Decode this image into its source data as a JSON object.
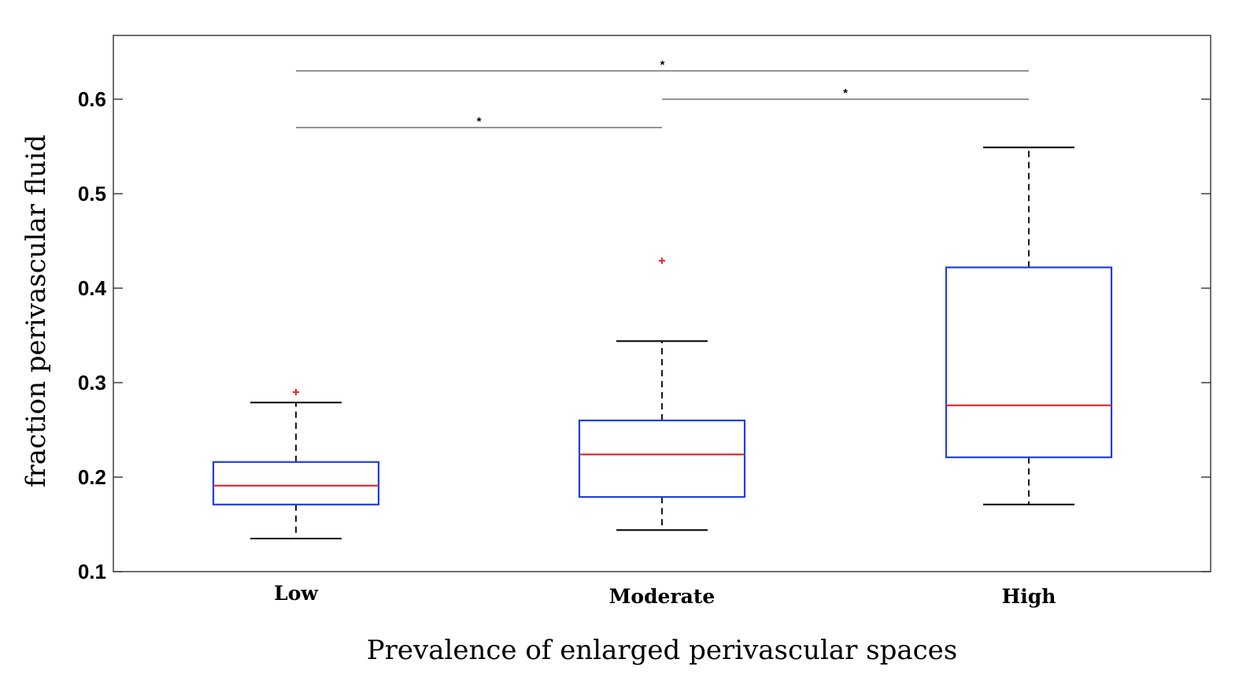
{
  "chart_data": {
    "type": "box",
    "xlabel": "Prevalence of enlarged perivascular spaces",
    "ylabel": "fraction perivascular fluid",
    "ylim": [
      0.1,
      0.67
    ],
    "yticks": [
      "0.1",
      "0.2",
      "0.3",
      "0.4",
      "0.5",
      "0.6"
    ],
    "categories": [
      "Low",
      "Moderate",
      "High"
    ],
    "boxes": [
      {
        "category": "Low",
        "whisker_low": 0.135,
        "q1": 0.171,
        "median": 0.191,
        "q3": 0.216,
        "whisker_high": 0.279,
        "outliers": [
          0.29
        ]
      },
      {
        "category": "Moderate",
        "whisker_low": 0.144,
        "q1": 0.179,
        "median": 0.224,
        "q3": 0.26,
        "whisker_high": 0.344,
        "outliers": [
          0.429
        ]
      },
      {
        "category": "High",
        "whisker_low": 0.171,
        "q1": 0.221,
        "median": 0.276,
        "q3": 0.422,
        "whisker_high": 0.549,
        "outliers": []
      }
    ],
    "significance": [
      {
        "from": "Low",
        "to": "Moderate",
        "y": 0.57,
        "label": "*"
      },
      {
        "from": "Moderate",
        "to": "High",
        "y": 0.6,
        "label": "*"
      },
      {
        "from": "Low",
        "to": "High",
        "y": 0.63,
        "label": "*"
      }
    ],
    "grid": false,
    "colors": {
      "box": "#1f3fdd",
      "median": "#e8242a",
      "whisker": "#000000",
      "outlier": "#e8242a",
      "bracket": "#555555"
    }
  }
}
